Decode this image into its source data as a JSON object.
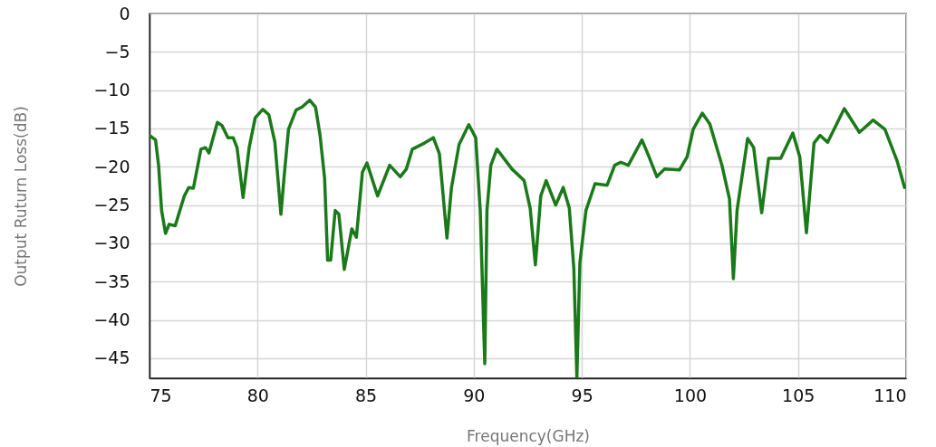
{
  "chart_data": {
    "type": "line",
    "xlabel": "Frequency(GHz)",
    "ylabel": "Output Ruturn Loss(dB)",
    "xlim": [
      75,
      110
    ],
    "xticks": [
      75,
      80,
      85,
      90,
      95,
      100,
      105,
      110
    ],
    "ylim": [
      -47.6,
      0
    ],
    "yticks": [
      0,
      -5,
      -10,
      -15,
      -20,
      -25,
      -30,
      -35,
      -40,
      -45
    ],
    "grid": true,
    "marker": "none",
    "line_style": "solid",
    "series": [
      {
        "color": "#1a7a1a",
        "x": [
          75,
          75.28,
          75.42,
          75.56,
          75.74,
          75.91,
          76.19,
          76.61,
          76.82,
          77.03,
          77.38,
          77.59,
          77.75,
          78.14,
          78.35,
          78.63,
          78.87,
          79.05,
          79.33,
          79.61,
          79.89,
          80.24,
          80.52,
          80.8,
          81.08,
          81.22,
          81.43,
          81.78,
          82.06,
          82.41,
          82.68,
          82.89,
          83.1,
          83.24,
          83.38,
          83.59,
          83.76,
          84.01,
          84.36,
          84.57,
          84.85,
          85.06,
          85.55,
          86.11,
          86.6,
          86.88,
          87.16,
          87.72,
          88.13,
          88.41,
          88.76,
          88.97,
          89.32,
          89.77,
          90.09,
          90.3,
          90.51,
          90.61,
          90.79,
          91.07,
          91.77,
          92.33,
          92.61,
          92.85,
          93.1,
          93.35,
          93.79,
          94.14,
          94.42,
          94.63,
          94.77,
          94.91,
          95.19,
          95.61,
          96.17,
          96.52,
          96.8,
          97.15,
          97.78,
          98.05,
          98.47,
          98.82,
          99.52,
          99.87,
          100.15,
          100.57,
          100.92,
          101.48,
          101.83,
          102.01,
          102.18,
          102.67,
          102.95,
          103.32,
          103.64,
          104.2,
          104.76,
          105.08,
          105.39,
          105.74,
          106.02,
          106.37,
          107.14,
          107.84,
          108.47,
          109.02,
          109.58,
          109.93
        ],
        "values": [
          -15.9,
          -16.5,
          -19.8,
          -25.7,
          -28.7,
          -27.5,
          -27.7,
          -23.8,
          -22.7,
          -22.8,
          -17.7,
          -17.5,
          -18.2,
          -14.2,
          -14.6,
          -16.2,
          -16.2,
          -17.5,
          -24,
          -17.5,
          -13.6,
          -12.5,
          -13.2,
          -16.8,
          -26.2,
          -21.5,
          -15.1,
          -12.6,
          -12.2,
          -11.3,
          -12.2,
          -15.9,
          -21.5,
          -32.2,
          -32.2,
          -25.7,
          -26.2,
          -33.4,
          -28.1,
          -29.2,
          -20.7,
          -19.5,
          -23.8,
          -19.8,
          -21.3,
          -20.3,
          -17.7,
          -16.9,
          -16.2,
          -18.3,
          -29.3,
          -22.7,
          -17.1,
          -14.5,
          -16.2,
          -25.7,
          -45.7,
          -25.7,
          -19.8,
          -17.7,
          -20.3,
          -21.8,
          -25.4,
          -32.8,
          -23.8,
          -21.8,
          -25,
          -22.7,
          -25.4,
          -33.3,
          -47.5,
          -32.5,
          -25.7,
          -22.2,
          -22.4,
          -19.8,
          -19.4,
          -19.8,
          -16.5,
          -18.3,
          -21.3,
          -20.3,
          -20.4,
          -18.7,
          -15.1,
          -13,
          -14.4,
          -19.8,
          -24.2,
          -34.6,
          -25.7,
          -16.3,
          -17.5,
          -26,
          -18.9,
          -18.9,
          -15.6,
          -18.7,
          -28.6,
          -16.9,
          -15.9,
          -16.8,
          -12.4,
          -15.5,
          -13.9,
          -15.1,
          -19.2,
          -22.7
        ]
      }
    ]
  }
}
